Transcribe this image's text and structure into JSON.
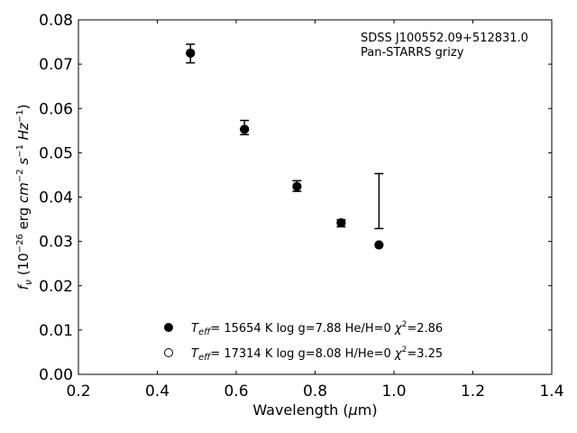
{
  "chart_data": {
    "type": "scatter",
    "title": "",
    "xlabel": "Wavelength (μm)",
    "ylabel": "fν (10⁻²⁶ erg cm⁻² s⁻¹ Hz⁻¹)",
    "xlim": [
      0.2,
      1.4
    ],
    "ylim": [
      0.0,
      0.08
    ],
    "x_ticks": [
      0.2,
      0.4,
      0.6,
      0.8,
      1.0,
      1.2,
      1.4
    ],
    "y_ticks": [
      0.0,
      0.01,
      0.02,
      0.03,
      0.04,
      0.05,
      0.06,
      0.07,
      0.08
    ],
    "x_tick_labels": [
      "0.2",
      "0.4",
      "0.6",
      "0.8",
      "1.0",
      "1.2",
      "1.4"
    ],
    "y_tick_labels": [
      "0.00",
      "0.01",
      "0.02",
      "0.03",
      "0.04",
      "0.05",
      "0.06",
      "0.07",
      "0.08"
    ],
    "grid": false,
    "annotation": [
      "SDSS J100552.09+512831.0",
      "Pan-STARRS grizy"
    ],
    "observed": {
      "name": "",
      "x": [
        0.484,
        0.621,
        0.754,
        0.866,
        0.962
      ],
      "y": [
        0.0724,
        0.0557,
        0.0425,
        0.0341,
        0.0391
      ],
      "yerr": [
        0.0021,
        0.0016,
        0.0012,
        0.0008,
        0.0062
      ]
    },
    "series": [
      {
        "name": "Teff= 15654 K  log g=7.88  He/H=0  χ²=2.86",
        "marker": "filled",
        "x": [
          0.484,
          0.621,
          0.754,
          0.866,
          0.962
        ],
        "y": [
          0.0725,
          0.0553,
          0.0424,
          0.0342,
          0.0292
        ]
      },
      {
        "name": "Teff= 17314 K  log g=8.08  H/He=0  χ²=3.25",
        "marker": "open",
        "x": [
          0.484,
          0.621,
          0.754,
          0.866,
          0.962
        ],
        "y": [
          0.0725,
          0.0553,
          0.0424,
          0.0342,
          0.0292
        ]
      }
    ],
    "legend": {
      "placement": "lower-center",
      "entries": [
        {
          "teff": "15654",
          "logg": "7.88",
          "comp": "He/H=0",
          "chi2": "2.86"
        },
        {
          "teff": "17314",
          "logg": "8.08",
          "comp": "H/He=0",
          "chi2": "3.25"
        }
      ]
    }
  }
}
